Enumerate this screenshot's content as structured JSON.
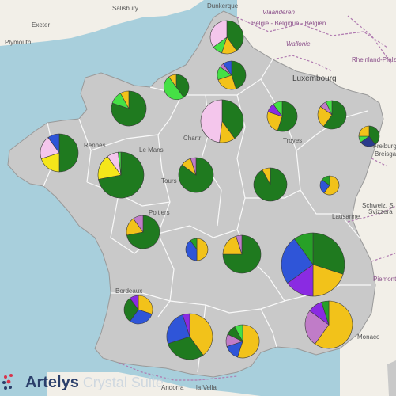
{
  "map": {
    "colors": {
      "sea": "#a8cfdc",
      "foreign_land": "#f2efe8",
      "france": "#c9c9c9",
      "region_border": "#ffffff",
      "neighbour_border": "#b07ab0"
    },
    "place_labels": {
      "dunkerque": "Dunkerque",
      "salisbury": "Salisbury",
      "exeter": "Exeter",
      "plymouth": "Plymouth",
      "vlaanderen": "Vlaanderen",
      "belgie": "België - Belgique - Belgien",
      "wallonie": "Wallonie",
      "luxembourg": "Luxembourg",
      "rheinland": "Rheinland-Pfalz",
      "rennes": "Rennes",
      "le_mans": "Le Mans",
      "tours": "Tours",
      "poitiers": "Poitiers",
      "bordeaux": "Bordeaux",
      "troyes": "Troyes",
      "lausanne": "Lausanne",
      "schweiz": "Schweiz, S",
      "svizzera": "Svizzera",
      "freiburg": "Freiburg",
      "breisgau": "Breisgau",
      "piemonte": "Piemonte",
      "monaco": "Monaco",
      "andorra": "Andorra",
      "la_vella": "la Vella",
      "chartres": "Chartr"
    }
  },
  "legend_colors": {
    "dark_green": "#1f7a1f",
    "green": "#27a027",
    "light_green": "#45e045",
    "yellow": "#f5e61a",
    "gold": "#f2c21a",
    "pink": "#f4c6ec",
    "blue": "#2f55d8",
    "purple": "#8a2be2",
    "violet": "#c07cc8",
    "dark_blue": "#2a3b8c"
  },
  "chart_data": {
    "type": "pie",
    "series": [
      {
        "slices": [
          {
            "c": "dark_green",
            "v": 40
          },
          {
            "c": "gold",
            "v": 15
          },
          {
            "c": "light_green",
            "v": 10
          },
          {
            "c": "pink",
            "v": 35
          }
        ]
      },
      {
        "slices": [
          {
            "c": "dark_green",
            "v": 45
          },
          {
            "c": "gold",
            "v": 25
          },
          {
            "c": "light_green",
            "v": 15
          },
          {
            "c": "violet",
            "v": 5
          },
          {
            "c": "blue",
            "v": 10
          }
        ]
      },
      {
        "slices": [
          {
            "c": "dark_green",
            "v": 40
          },
          {
            "c": "light_green",
            "v": 50
          },
          {
            "c": "gold",
            "v": 10
          }
        ]
      },
      {
        "slices": [
          {
            "c": "dark_green",
            "v": 80
          },
          {
            "c": "light_green",
            "v": 12
          },
          {
            "c": "gold",
            "v": 8
          }
        ]
      },
      {
        "slices": [
          {
            "c": "dark_green",
            "v": 40
          },
          {
            "c": "gold",
            "v": 12
          },
          {
            "c": "pink",
            "v": 48
          }
        ]
      },
      {
        "slices": [
          {
            "c": "dark_green",
            "v": 55
          },
          {
            "c": "gold",
            "v": 25
          },
          {
            "c": "purple",
            "v": 10
          },
          {
            "c": "light_green",
            "v": 10
          }
        ]
      },
      {
        "slices": [
          {
            "c": "dark_green",
            "v": 60
          },
          {
            "c": "gold",
            "v": 25
          },
          {
            "c": "violet",
            "v": 8
          },
          {
            "c": "light_green",
            "v": 7
          }
        ]
      },
      {
        "slices": [
          {
            "c": "dark_green",
            "v": 40
          },
          {
            "c": "dark_blue",
            "v": 25
          },
          {
            "c": "light_green",
            "v": 10
          },
          {
            "c": "gold",
            "v": 25
          }
        ]
      },
      {
        "slices": [
          {
            "c": "dark_green",
            "v": 50
          },
          {
            "c": "yellow",
            "v": 20
          },
          {
            "c": "pink",
            "v": 20
          },
          {
            "c": "blue",
            "v": 10
          }
        ]
      },
      {
        "slices": [
          {
            "c": "dark_green",
            "v": 72
          },
          {
            "c": "yellow",
            "v": 18
          },
          {
            "c": "pink",
            "v": 8
          },
          {
            "c": "light_green",
            "v": 2
          }
        ]
      },
      {
        "slices": [
          {
            "c": "dark_green",
            "v": 85
          },
          {
            "c": "gold",
            "v": 10
          },
          {
            "c": "violet",
            "v": 5
          }
        ]
      },
      {
        "slices": [
          {
            "c": "dark_green",
            "v": 92
          },
          {
            "c": "gold",
            "v": 8
          }
        ]
      },
      {
        "slices": [
          {
            "c": "gold",
            "v": 60
          },
          {
            "c": "blue",
            "v": 25
          },
          {
            "c": "green",
            "v": 15
          }
        ]
      },
      {
        "slices": [
          {
            "c": "dark_green",
            "v": 72
          },
          {
            "c": "gold",
            "v": 18
          },
          {
            "c": "violet",
            "v": 10
          }
        ]
      },
      {
        "slices": [
          {
            "c": "gold",
            "v": 50
          },
          {
            "c": "blue",
            "v": 40
          },
          {
            "c": "green",
            "v": 10
          }
        ]
      },
      {
        "slices": [
          {
            "c": "dark_green",
            "v": 75
          },
          {
            "c": "gold",
            "v": 20
          },
          {
            "c": "violet",
            "v": 5
          }
        ]
      },
      {
        "slices": [
          {
            "c": "dark_green",
            "v": 30
          },
          {
            "c": "gold",
            "v": 20
          },
          {
            "c": "purple",
            "v": 15
          },
          {
            "c": "blue",
            "v": 25
          },
          {
            "c": "green",
            "v": 10
          }
        ]
      },
      {
        "slices": [
          {
            "c": "gold",
            "v": 60
          },
          {
            "c": "violet",
            "v": 25
          },
          {
            "c": "purple",
            "v": 10
          },
          {
            "c": "green",
            "v": 5
          }
        ]
      },
      {
        "slices": [
          {
            "c": "gold",
            "v": 30
          },
          {
            "c": "blue",
            "v": 30
          },
          {
            "c": "dark_green",
            "v": 30
          },
          {
            "c": "purple",
            "v": 10
          }
        ]
      },
      {
        "slices": [
          {
            "c": "gold",
            "v": 40
          },
          {
            "c": "dark_green",
            "v": 30
          },
          {
            "c": "blue",
            "v": 25
          },
          {
            "c": "purple",
            "v": 5
          }
        ]
      },
      {
        "slices": [
          {
            "c": "gold",
            "v": 55
          },
          {
            "c": "blue",
            "v": 15
          },
          {
            "c": "violet",
            "v": 12
          },
          {
            "c": "dark_green",
            "v": 10
          },
          {
            "c": "light_green",
            "v": 8
          }
        ]
      }
    ]
  },
  "brand": {
    "name": "Artelys",
    "sub": "Crystal Suite"
  }
}
